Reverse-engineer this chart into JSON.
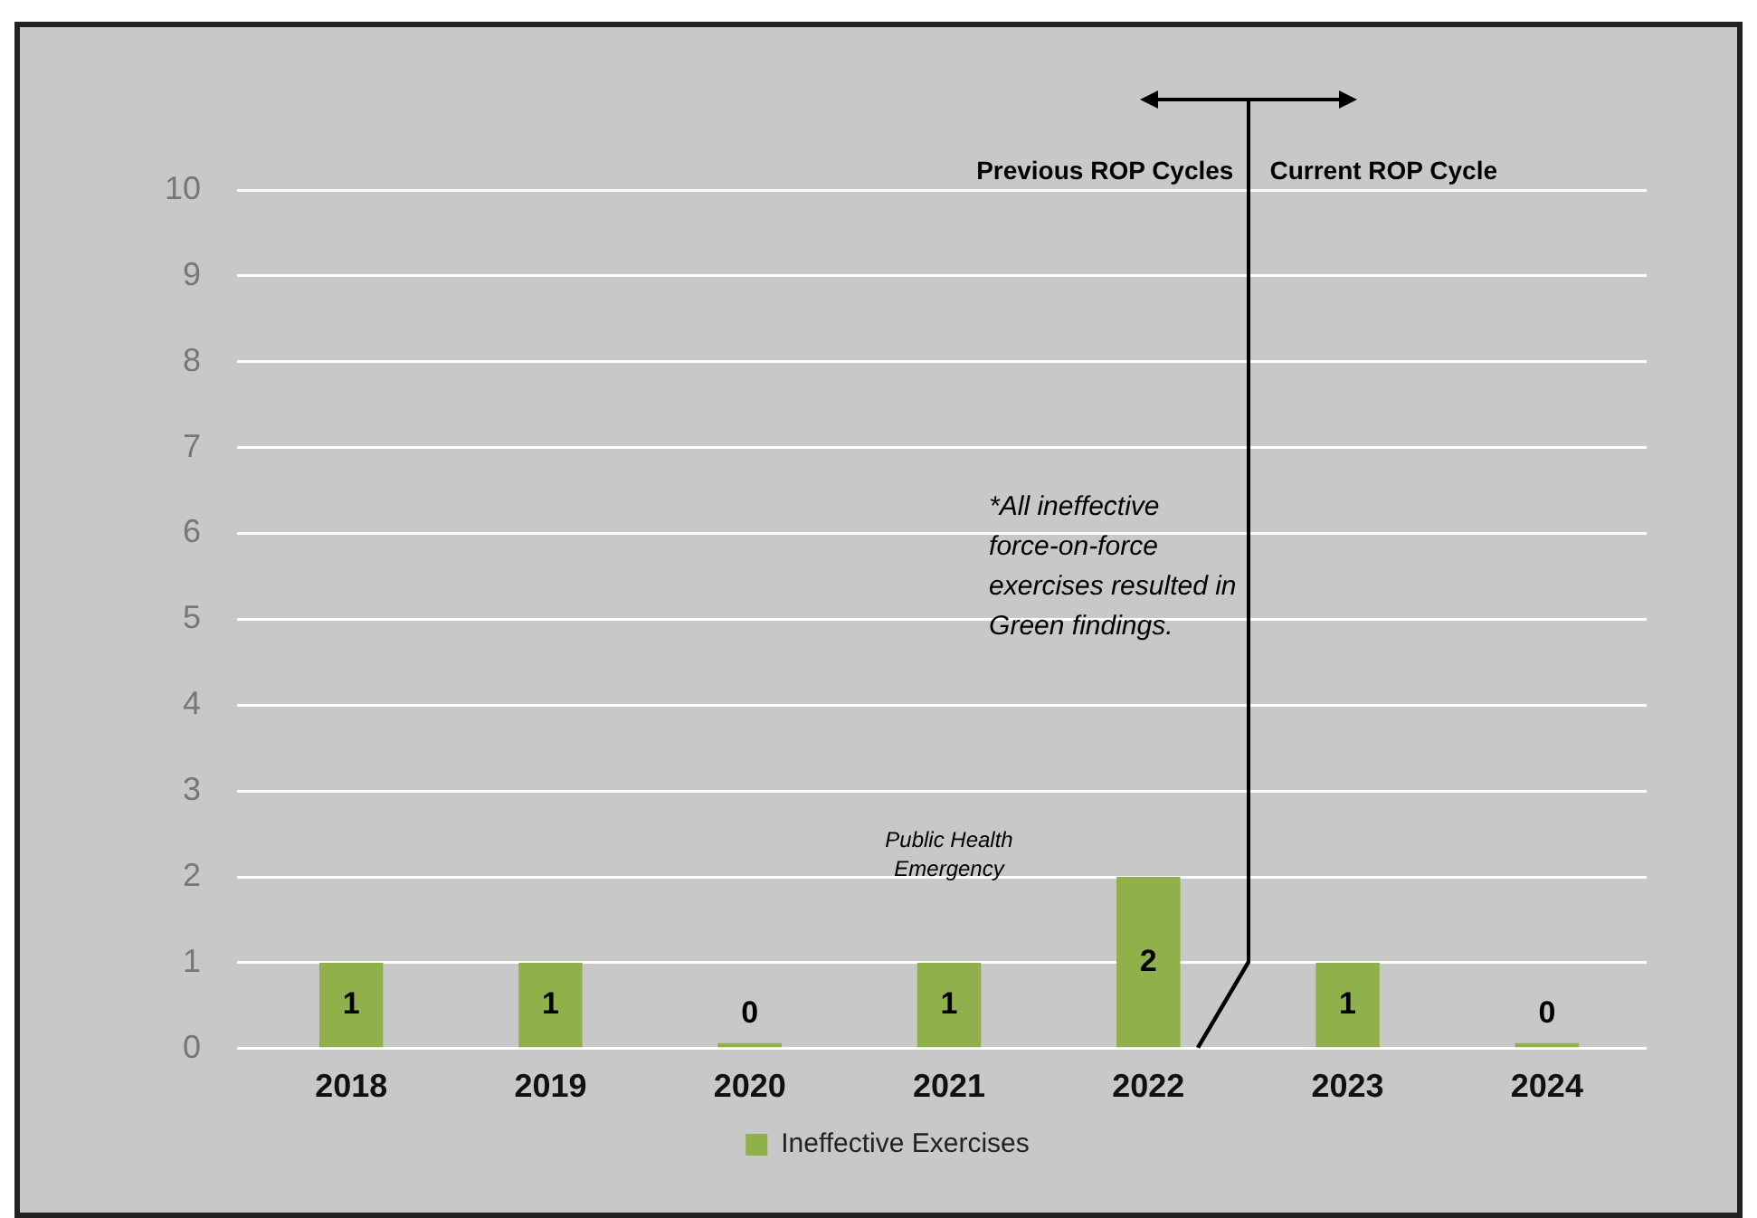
{
  "chart_data": {
    "type": "bar",
    "categories": [
      "2018",
      "2019",
      "2020",
      "2021",
      "2022",
      "2023",
      "2024"
    ],
    "series": [
      {
        "name": "Ineffective Exercises",
        "color": "#8fb04a",
        "values": [
          1,
          1,
          0,
          1,
          2,
          1,
          0
        ]
      }
    ],
    "ylim": [
      0,
      10
    ],
    "yticks": [
      0,
      1,
      2,
      3,
      4,
      5,
      6,
      7,
      8,
      9,
      10
    ],
    "grid": "y",
    "legend": "bottom",
    "data_labels": true,
    "annotations": [
      "Public Health Emergency",
      "Previous ROP Cycles",
      "Current ROP Cycle",
      "*All ineffective force-on-force exercises resulted in Green findings."
    ]
  }
}
